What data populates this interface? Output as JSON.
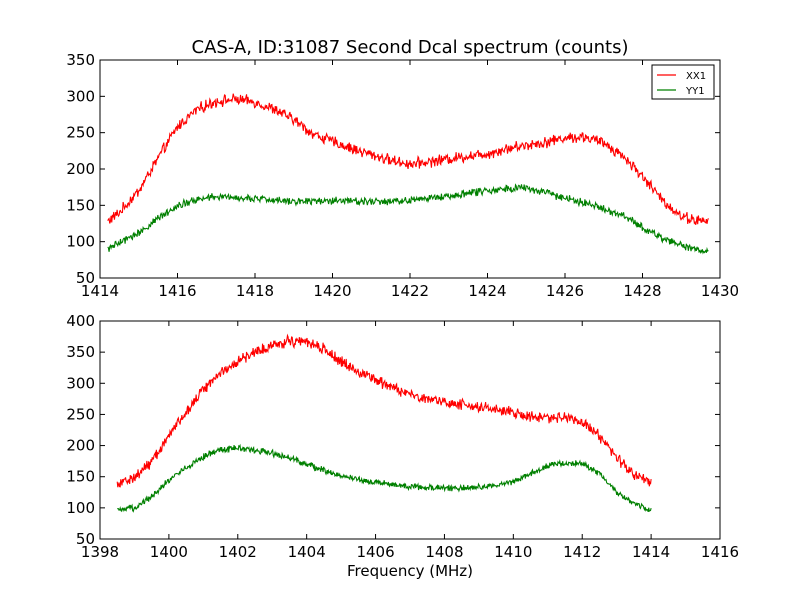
{
  "figure": {
    "title": "CAS-A, ID:31087 Second Dcal spectrum (counts)"
  },
  "colors": {
    "XX1": "#ff0000",
    "YY1": "#008000",
    "axes": "#000000",
    "background": "#ffffff"
  },
  "chart_data": [
    {
      "type": "line",
      "title": "CAS-A, ID:31087 Second Dcal spectrum (counts)",
      "xlabel": "",
      "ylabel": "",
      "xlim": [
        1414,
        1430
      ],
      "ylim": [
        50,
        350
      ],
      "xticks": [
        "1414",
        "1416",
        "1418",
        "1420",
        "1422",
        "1424",
        "1426",
        "1428",
        "1430"
      ],
      "yticks": [
        "50",
        "100",
        "150",
        "200",
        "250",
        "300",
        "350"
      ],
      "grid": false,
      "legend": "top-right",
      "series": [
        {
          "name": "XX1",
          "color": "#ff0000",
          "noise": 6,
          "x": [
            1414.2,
            1414.5,
            1415.0,
            1415.5,
            1416.0,
            1416.5,
            1417.0,
            1417.5,
            1418.0,
            1418.5,
            1419.0,
            1419.5,
            1420.0,
            1420.5,
            1421.0,
            1421.5,
            1422.0,
            1422.5,
            1423.0,
            1423.5,
            1424.0,
            1424.5,
            1425.0,
            1425.5,
            1426.0,
            1426.5,
            1427.0,
            1427.5,
            1428.0,
            1428.5,
            1429.0,
            1429.5,
            1429.7
          ],
          "y": [
            128,
            140,
            170,
            215,
            258,
            282,
            293,
            296,
            292,
            282,
            268,
            248,
            238,
            228,
            220,
            212,
            207,
            210,
            214,
            218,
            221,
            228,
            233,
            237,
            243,
            244,
            236,
            218,
            190,
            158,
            135,
            128,
            128
          ]
        },
        {
          "name": "YY1",
          "color": "#008000",
          "noise": 4,
          "x": [
            1414.2,
            1414.5,
            1415.0,
            1415.5,
            1416.0,
            1416.5,
            1417.0,
            1417.5,
            1418.0,
            1418.5,
            1419.0,
            1419.5,
            1420.0,
            1420.5,
            1421.0,
            1421.5,
            1422.0,
            1422.5,
            1423.0,
            1423.5,
            1424.0,
            1424.5,
            1425.0,
            1425.5,
            1426.0,
            1426.5,
            1427.0,
            1427.5,
            1428.0,
            1428.5,
            1429.0,
            1429.5,
            1429.7
          ],
          "y": [
            90,
            98,
            112,
            132,
            150,
            158,
            162,
            161,
            159,
            157,
            156,
            156,
            157,
            157,
            155,
            155,
            157,
            160,
            163,
            167,
            170,
            174,
            174,
            167,
            160,
            153,
            145,
            136,
            120,
            105,
            95,
            88,
            88
          ]
        }
      ]
    },
    {
      "type": "line",
      "title": "",
      "xlabel": "Frequency (MHz)",
      "ylabel": "",
      "xlim": [
        1398,
        1416
      ],
      "ylim": [
        50,
        400
      ],
      "xticks": [
        "1398",
        "1400",
        "1402",
        "1404",
        "1406",
        "1408",
        "1410",
        "1412",
        "1414",
        "1416"
      ],
      "yticks": [
        "50",
        "100",
        "150",
        "200",
        "250",
        "300",
        "350",
        "400"
      ],
      "grid": false,
      "legend": "none",
      "series": [
        {
          "name": "XX1",
          "color": "#ff0000",
          "noise": 7,
          "x": [
            1398.5,
            1399.0,
            1399.5,
            1400.0,
            1400.5,
            1401.0,
            1401.5,
            1402.0,
            1402.5,
            1403.0,
            1403.5,
            1404.0,
            1404.5,
            1405.0,
            1405.5,
            1406.0,
            1406.5,
            1407.0,
            1407.5,
            1408.0,
            1408.5,
            1409.0,
            1409.5,
            1410.0,
            1410.5,
            1411.0,
            1411.5,
            1412.0,
            1412.5,
            1413.0,
            1413.5,
            1414.0
          ],
          "y": [
            140,
            148,
            175,
            215,
            255,
            290,
            318,
            335,
            350,
            362,
            368,
            367,
            355,
            335,
            318,
            305,
            292,
            283,
            275,
            270,
            266,
            262,
            258,
            252,
            246,
            245,
            246,
            240,
            215,
            180,
            155,
            142
          ]
        },
        {
          "name": "YY1",
          "color": "#008000",
          "noise": 4,
          "x": [
            1398.5,
            1399.0,
            1399.5,
            1400.0,
            1400.5,
            1401.0,
            1401.5,
            1402.0,
            1402.5,
            1403.0,
            1403.5,
            1404.0,
            1404.5,
            1405.0,
            1405.5,
            1406.0,
            1406.5,
            1407.0,
            1407.5,
            1408.0,
            1408.5,
            1409.0,
            1409.5,
            1410.0,
            1410.5,
            1411.0,
            1411.5,
            1412.0,
            1412.5,
            1413.0,
            1413.5,
            1414.0
          ],
          "y": [
            95,
            100,
            118,
            145,
            165,
            182,
            193,
            196,
            193,
            188,
            180,
            170,
            160,
            152,
            146,
            141,
            137,
            134,
            133,
            132,
            132,
            133,
            136,
            142,
            155,
            168,
            172,
            171,
            155,
            125,
            107,
            96
          ]
        }
      ]
    }
  ]
}
